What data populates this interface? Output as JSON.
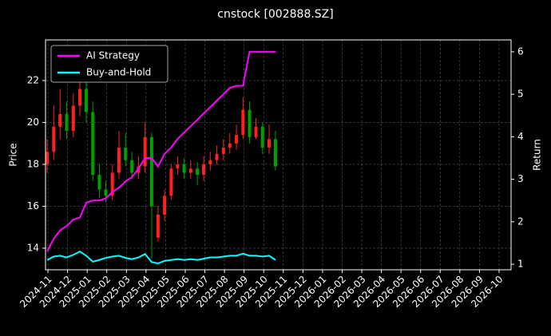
{
  "chart_data": {
    "type": "candlestick",
    "title": "cnstock [002888.SZ]",
    "ylabel": "Price",
    "y2label": "Return",
    "x": [
      2024.83,
      2024.858,
      2024.885,
      2024.913,
      2024.941,
      2024.969,
      2024.996,
      2025.024,
      2025.052,
      2025.079,
      2025.107,
      2025.135,
      2025.163,
      2025.19,
      2025.218,
      2025.246,
      2025.274,
      2025.301,
      2025.329,
      2025.357,
      2025.384,
      2025.412,
      2025.44,
      2025.468,
      2025.495,
      2025.523,
      2025.551,
      2025.579,
      2025.606,
      2025.634,
      2025.662,
      2025.69,
      2025.717,
      2025.745,
      2025.773,
      2025.8
    ],
    "open": [
      18.0,
      18.6,
      19.8,
      20.4,
      19.6,
      20.8,
      21.6,
      20.5,
      17.5,
      16.8,
      16.5,
      17.6,
      18.8,
      18.2,
      17.6,
      17.9,
      19.3,
      14.5,
      15.6,
      16.5,
      17.8,
      18.0,
      17.6,
      17.8,
      17.5,
      18.0,
      18.2,
      18.5,
      18.8,
      19.0,
      19.4,
      20.6,
      19.3,
      19.8,
      18.8,
      19.2
    ],
    "high": [
      19.2,
      20.8,
      21.6,
      21.0,
      21.4,
      22.4,
      22.6,
      21.0,
      18.0,
      17.2,
      18.0,
      19.6,
      19.5,
      18.6,
      18.4,
      20.0,
      19.5,
      16.0,
      16.8,
      18.0,
      18.4,
      18.3,
      18.2,
      18.1,
      18.4,
      18.6,
      18.9,
      19.2,
      19.5,
      19.9,
      21.2,
      21.0,
      20.2,
      20.0,
      19.9,
      19.6
    ],
    "low": [
      17.6,
      18.2,
      19.2,
      19.2,
      19.3,
      20.3,
      20.0,
      17.2,
      16.4,
      16.2,
      16.3,
      17.3,
      17.9,
      17.3,
      17.3,
      17.6,
      13.5,
      14.3,
      15.3,
      16.3,
      17.5,
      17.3,
      17.3,
      17.0,
      17.2,
      17.7,
      18.0,
      18.2,
      18.5,
      18.7,
      19.2,
      19.0,
      19.2,
      18.5,
      18.5,
      17.7
    ],
    "close": [
      18.6,
      19.8,
      20.4,
      19.6,
      20.8,
      21.6,
      20.5,
      17.5,
      16.8,
      16.5,
      17.6,
      18.8,
      18.2,
      17.6,
      17.9,
      19.3,
      16.0,
      15.6,
      16.5,
      17.8,
      18.0,
      17.6,
      17.8,
      17.5,
      18.0,
      18.2,
      18.5,
      18.8,
      19.0,
      19.4,
      20.6,
      19.3,
      19.8,
      18.8,
      19.2,
      17.9
    ],
    "up_color": "#ff2020",
    "down_color": "#00a000",
    "series": [
      {
        "name": "AI Strategy",
        "color": "#ff00ff",
        "axis": "y2",
        "values": [
          1.3,
          1.6,
          1.8,
          1.9,
          2.05,
          2.1,
          2.45,
          2.5,
          2.5,
          2.55,
          2.7,
          2.8,
          2.95,
          3.05,
          3.25,
          3.5,
          3.5,
          3.3,
          3.6,
          3.75,
          3.95,
          4.1,
          4.25,
          4.4,
          4.55,
          4.7,
          4.85,
          5.0,
          5.15,
          5.2,
          5.2,
          6.0,
          6.0,
          6.0,
          6.0,
          6.0
        ]
      },
      {
        "name": "Buy-and-Hold",
        "color": "#00ffff",
        "axis": "y2",
        "values": [
          1.1,
          1.18,
          1.2,
          1.16,
          1.22,
          1.3,
          1.2,
          1.06,
          1.1,
          1.15,
          1.18,
          1.2,
          1.15,
          1.12,
          1.16,
          1.24,
          1.05,
          1.02,
          1.08,
          1.1,
          1.12,
          1.1,
          1.12,
          1.1,
          1.13,
          1.16,
          1.16,
          1.18,
          1.2,
          1.2,
          1.25,
          1.2,
          1.2,
          1.18,
          1.2,
          1.1
        ]
      }
    ],
    "xlim": [
      2024.823,
      2026.801
    ],
    "xticks": [
      {
        "value": 2024.8333,
        "label": "2024-11"
      },
      {
        "value": 2024.9167,
        "label": "2024-12"
      },
      {
        "value": 2025.0,
        "label": "2025-01"
      },
      {
        "value": 2025.0833,
        "label": "2025-02"
      },
      {
        "value": 2025.1667,
        "label": "2025-03"
      },
      {
        "value": 2025.25,
        "label": "2025-04"
      },
      {
        "value": 2025.3333,
        "label": "2025-05"
      },
      {
        "value": 2025.4167,
        "label": "2025-06"
      },
      {
        "value": 2025.5,
        "label": "2025-07"
      },
      {
        "value": 2025.5833,
        "label": "2025-08"
      },
      {
        "value": 2025.6667,
        "label": "2025-09"
      },
      {
        "value": 2025.75,
        "label": "2025-10"
      },
      {
        "value": 2025.8333,
        "label": "2025-11"
      },
      {
        "value": 2025.9167,
        "label": "2025-12"
      },
      {
        "value": 2026.0,
        "label": "2026-01"
      },
      {
        "value": 2026.0833,
        "label": "2026-02"
      },
      {
        "value": 2026.1667,
        "label": "2026-03"
      },
      {
        "value": 2026.25,
        "label": "2026-04"
      },
      {
        "value": 2026.3333,
        "label": "2026-05"
      },
      {
        "value": 2026.4167,
        "label": "2026-06"
      },
      {
        "value": 2026.5,
        "label": "2026-07"
      },
      {
        "value": 2026.5833,
        "label": "2026-08"
      },
      {
        "value": 2026.6667,
        "label": "2026-09"
      },
      {
        "value": 2026.75,
        "label": "2026-10"
      }
    ],
    "ylim": [
      12.97,
      23.94
    ],
    "yticks": [
      14,
      16,
      18,
      20,
      22
    ],
    "y2lim": [
      0.87,
      6.28
    ],
    "y2ticks": [
      1,
      2,
      3,
      4,
      5,
      6
    ],
    "grid": true,
    "legend": "upper left"
  }
}
